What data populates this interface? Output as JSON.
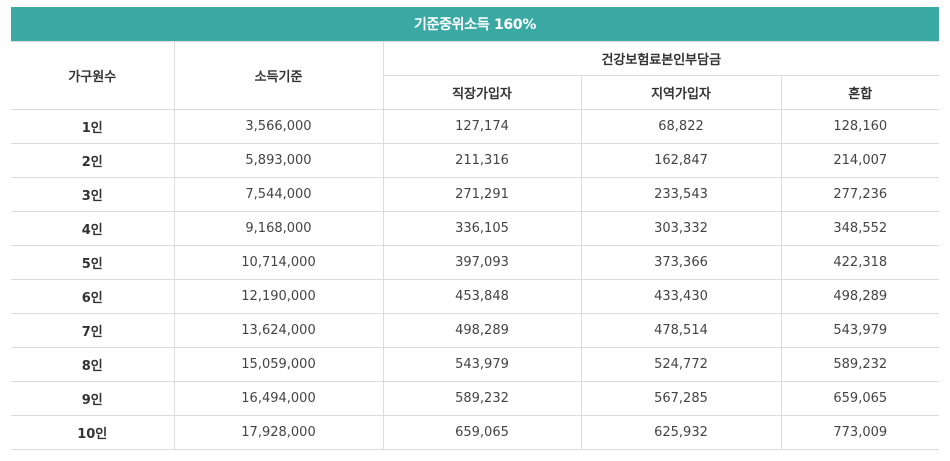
{
  "title": "기준중위소득 160%",
  "headers": {
    "household": "가구원수",
    "income": "소득기준",
    "premium_group": "건강보험료본인부담금",
    "workplace": "직장가입자",
    "regional": "지역가입자",
    "mixed": "혼합"
  },
  "rows": [
    {
      "size": "1인",
      "income": "3,566,000",
      "workplace": "127,174",
      "regional": "68,822",
      "mixed": "128,160"
    },
    {
      "size": "2인",
      "income": "5,893,000",
      "workplace": "211,316",
      "regional": "162,847",
      "mixed": "214,007"
    },
    {
      "size": "3인",
      "income": "7,544,000",
      "workplace": "271,291",
      "regional": "233,543",
      "mixed": "277,236"
    },
    {
      "size": "4인",
      "income": "9,168,000",
      "workplace": "336,105",
      "regional": "303,332",
      "mixed": "348,552"
    },
    {
      "size": "5인",
      "income": "10,714,000",
      "workplace": "397,093",
      "regional": "373,366",
      "mixed": "422,318"
    },
    {
      "size": "6인",
      "income": "12,190,000",
      "workplace": "453,848",
      "regional": "433,430",
      "mixed": "498,289"
    },
    {
      "size": "7인",
      "income": "13,624,000",
      "workplace": "498,289",
      "regional": "478,514",
      "mixed": "543,979"
    },
    {
      "size": "8인",
      "income": "15,059,000",
      "workplace": "543,979",
      "regional": "524,772",
      "mixed": "589,232"
    },
    {
      "size": "9인",
      "income": "16,494,000",
      "workplace": "589,232",
      "regional": "567,285",
      "mixed": "659,065"
    },
    {
      "size": "10인",
      "income": "17,928,000",
      "workplace": "659,065",
      "regional": "625,932",
      "mixed": "773,009"
    }
  ],
  "colors": {
    "header_bg": "#3aa9a4",
    "border": "#dcdcdc",
    "text": "#444444"
  }
}
